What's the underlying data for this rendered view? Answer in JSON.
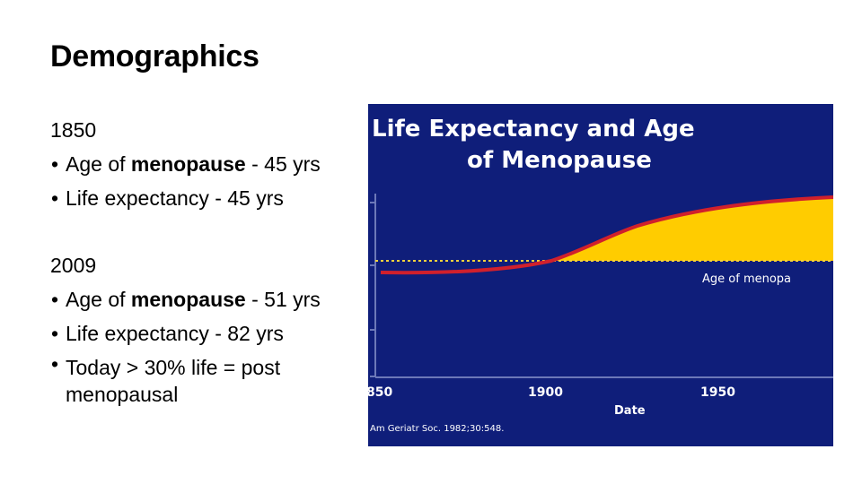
{
  "slide": {
    "title": "Demographics"
  },
  "sections": [
    {
      "heading": "1850",
      "bullets": [
        {
          "prefix": "Age of ",
          "bold": "menopause",
          "suffix": " - 45 yrs"
        },
        {
          "prefix": "Life expectancy - 45 yrs",
          "bold": "",
          "suffix": ""
        }
      ]
    },
    {
      "heading": "2009",
      "bullets": [
        {
          "prefix": "Age of ",
          "bold": "menopause",
          "suffix": " - 51 yrs"
        },
        {
          "prefix": "Life expectancy - 82 yrs",
          "bold": "",
          "suffix": ""
        },
        {
          "prefix": "Today > 30% life = post menopausal",
          "bold": "",
          "suffix": ""
        }
      ]
    }
  ],
  "figure": {
    "title_line1": "Life Expectancy and Age",
    "title_line2": "of Menopause",
    "series_label": "Age of menopa",
    "x_label": "Date",
    "x_ticks": [
      "850",
      "1900",
      "1950"
    ],
    "citation": "Am Geriatr Soc. 1982;30:548.",
    "colors": {
      "background": "#0f1e7a",
      "fill": "#ffcc00",
      "curve": "#d0202c",
      "dotted": "#f3d23c",
      "text": "#ffffff"
    }
  }
}
